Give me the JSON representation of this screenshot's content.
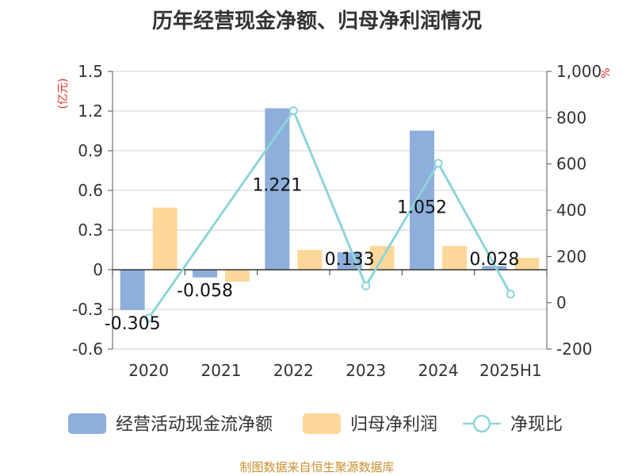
{
  "chart_data": {
    "type": "bar",
    "title": "历年经营现金净额、归母净利润情况",
    "categories": [
      "2020",
      "2021",
      "2022",
      "2023",
      "2024",
      "2025H1"
    ],
    "y_left_unit": "(亿元)",
    "y_right_unit": "%",
    "y_left_ticks": [
      "1.5",
      "1.2",
      "0.9",
      "0.6",
      "0.3",
      "0",
      "-0.3",
      "-0.6"
    ],
    "y_right_ticks": [
      "1,000",
      "800",
      "600",
      "400",
      "200",
      "0",
      "-200"
    ],
    "y_left_range": [
      -0.6,
      1.5
    ],
    "y_right_range": [
      -200,
      1000
    ],
    "series": [
      {
        "name": "经营活动现金流净额",
        "type": "bar",
        "axis": "left",
        "color": "#8eaedb",
        "values": [
          -0.305,
          -0.058,
          1.221,
          0.133,
          1.052,
          0.028
        ],
        "labels": [
          "-0.305",
          "-0.058",
          "1.221",
          "0.133",
          "1.052",
          "0.028"
        ]
      },
      {
        "name": "归母净利润",
        "type": "bar",
        "axis": "left",
        "color": "#fdd89a",
        "values": [
          0.47,
          -0.09,
          0.15,
          0.18,
          0.18,
          0.09
        ]
      },
      {
        "name": "净现比",
        "type": "line",
        "axis": "right",
        "color": "#8dd5d9",
        "values": [
          -66,
          null,
          830,
          73,
          603,
          37
        ]
      }
    ],
    "legend_position": "bottom"
  },
  "footer": {
    "source": "制图数据来自恒生聚源数据库"
  }
}
